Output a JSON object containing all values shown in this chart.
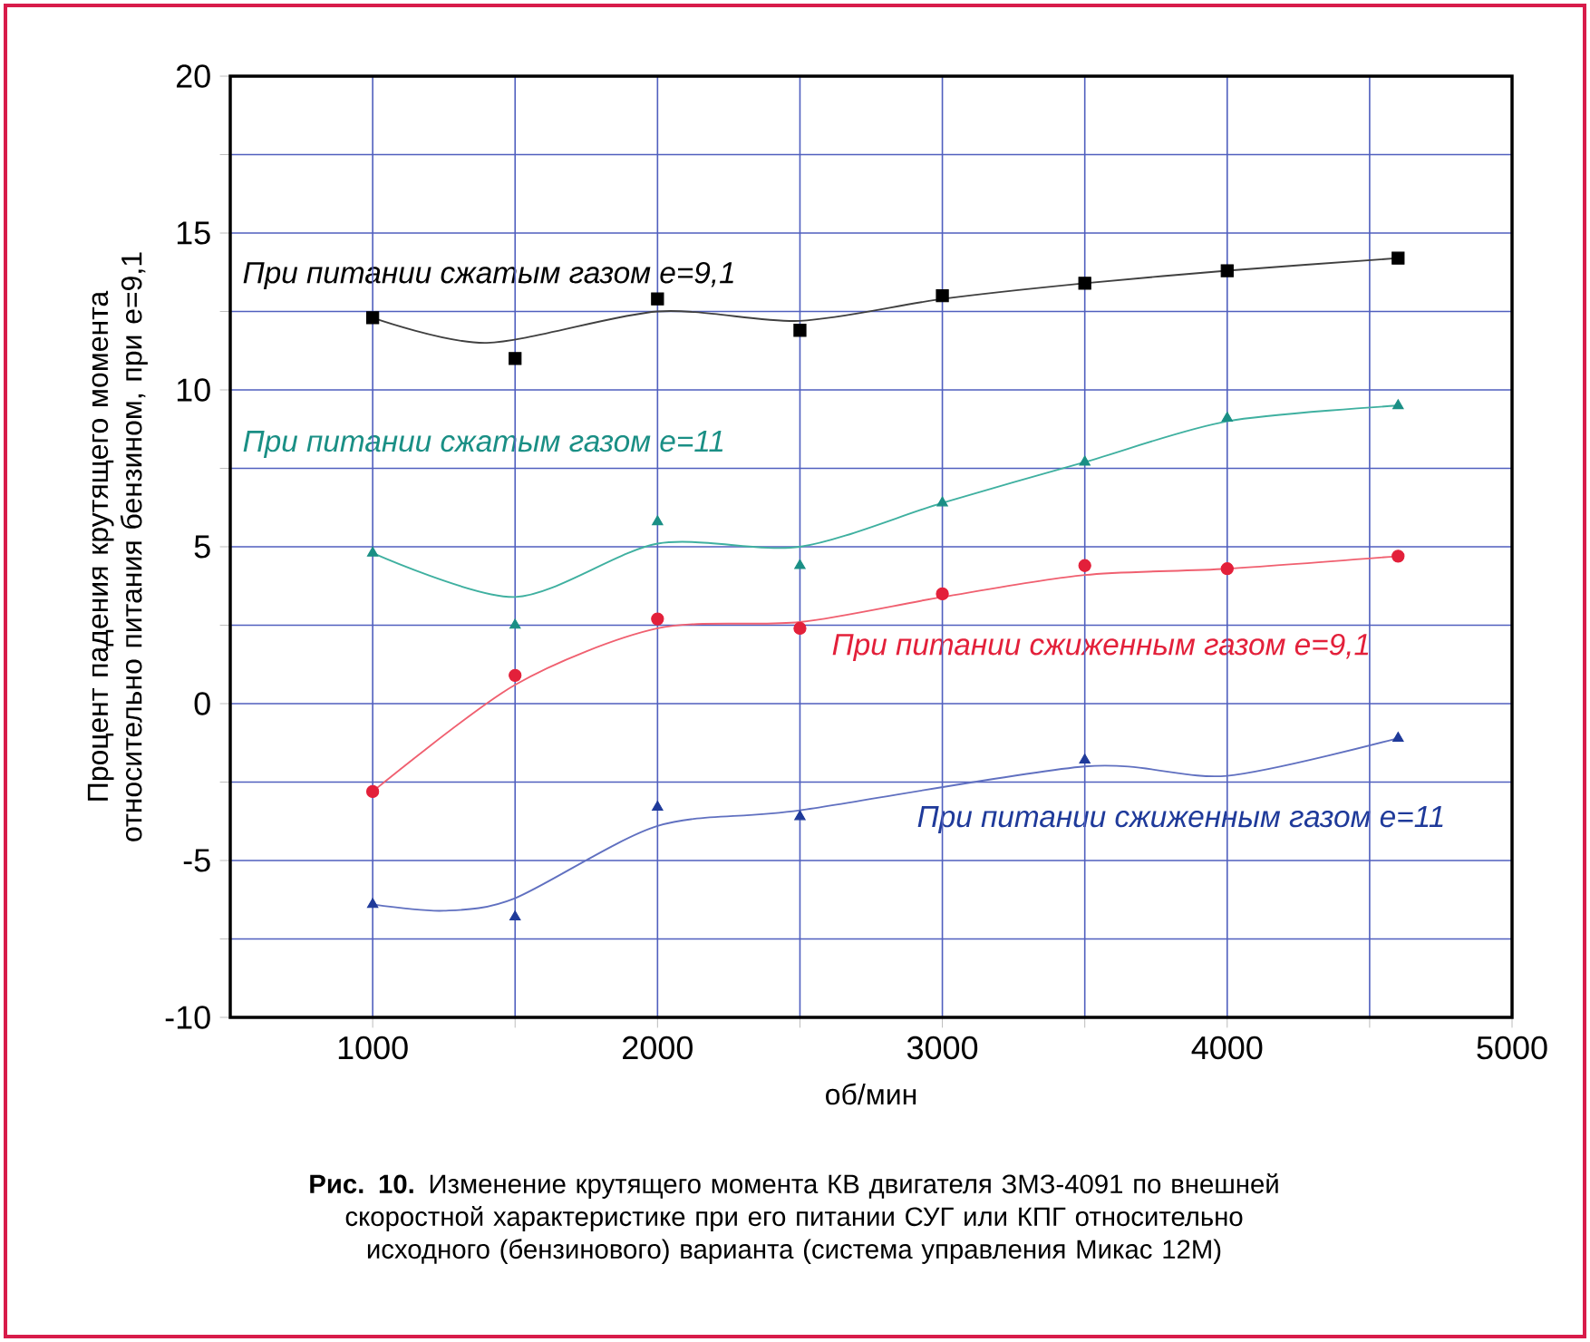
{
  "chart_data": {
    "type": "line",
    "xlabel": "об/мин",
    "ylabel": "Процент падения крутящего момента относительно питания бензином, при е=9,1",
    "xlim": [
      500,
      5000
    ],
    "ylim": [
      -10,
      20
    ],
    "xticks": [
      1000,
      {
        "value": 1500,
        "label": null
      },
      2000,
      {
        "value": 2500,
        "label": null
      },
      3000,
      {
        "value": 3500,
        "label": null
      },
      4000,
      {
        "value": 4500,
        "label": null
      },
      5000
    ],
    "yticks": [
      -10,
      {
        "value": -7.5,
        "label": null
      },
      -5,
      {
        "value": -2.5,
        "label": null
      },
      0,
      {
        "value": 2.5,
        "label": null
      },
      5,
      {
        "value": 7.5,
        "label": null
      },
      10,
      {
        "value": 12.5,
        "label": null
      },
      15,
      {
        "value": 17.5,
        "label": null
      },
      20
    ],
    "grid": true,
    "series": [
      {
        "type": "scatter",
        "name": "При питании сжатым газом е=9,1",
        "color": "#000000",
        "marker": "square",
        "x": [
          1000,
          1500,
          2000,
          2500,
          3000,
          3500,
          4000,
          4600
        ],
        "values": [
          12.3,
          11.0,
          12.9,
          11.9,
          13.0,
          13.4,
          13.8,
          14.2
        ]
      },
      {
        "type": "scatter",
        "name": "При питании сжатым газом е=11",
        "color": "#1a8f85",
        "marker": "triangle",
        "x": [
          1000,
          1500,
          2000,
          2500,
          3000,
          3500,
          4000,
          4600
        ],
        "values": [
          4.8,
          2.5,
          5.8,
          4.4,
          6.4,
          7.7,
          9.1,
          9.5
        ]
      },
      {
        "type": "scatter",
        "name": "При питании сжиженным газом е=9,1",
        "color": "#e3203a",
        "marker": "circle",
        "x": [
          1000,
          1500,
          2000,
          2500,
          3000,
          3500,
          4000,
          4600
        ],
        "values": [
          -2.8,
          0.9,
          2.7,
          2.4,
          3.5,
          4.4,
          4.3,
          4.7
        ]
      },
      {
        "type": "scatter",
        "name": "При питании сжиженным газом е=11",
        "color": "#1f3a9a",
        "marker": "triangle",
        "x": [
          1000,
          1500,
          2000,
          2500,
          3500,
          4600
        ],
        "values": [
          -6.4,
          -6.8,
          -3.3,
          -3.6,
          -1.8,
          -1.1
        ]
      },
      {
        "type": "line",
        "color": "#404040",
        "x": [
          1000,
          1400,
          2000,
          2500,
          3000,
          3500,
          4000,
          4600
        ],
        "values": [
          12.3,
          11.5,
          12.5,
          12.2,
          12.9,
          13.4,
          13.8,
          14.2
        ]
      },
      {
        "type": "line",
        "color": "#3fb0a0",
        "x": [
          1000,
          1500,
          2000,
          2500,
          3000,
          3500,
          4000,
          4600
        ],
        "values": [
          4.8,
          3.4,
          5.1,
          5.0,
          6.4,
          7.7,
          9.0,
          9.5
        ]
      },
      {
        "type": "line",
        "color": "#f06070",
        "x": [
          1000,
          1500,
          2000,
          2500,
          3000,
          3500,
          4000,
          4600
        ],
        "values": [
          -2.8,
          0.6,
          2.4,
          2.6,
          3.4,
          4.1,
          4.3,
          4.7
        ]
      },
      {
        "type": "line",
        "color": "#6070c0",
        "x": [
          1000,
          1250,
          1500,
          2000,
          2500,
          3500,
          4000,
          4600
        ],
        "values": [
          -6.4,
          -6.6,
          -6.2,
          -3.9,
          -3.4,
          -2.0,
          -2.3,
          -1.1
        ]
      }
    ],
    "annotations": [
      "**Рис. 10.** Изменение крутящего момента КВ двигателя ЗМЗ-4091 по внешней скоростной характеристике при его питании СУГ или КПГ относительно исходного (бензинового) варианта (система управления Микас 12М)"
    ]
  }
}
